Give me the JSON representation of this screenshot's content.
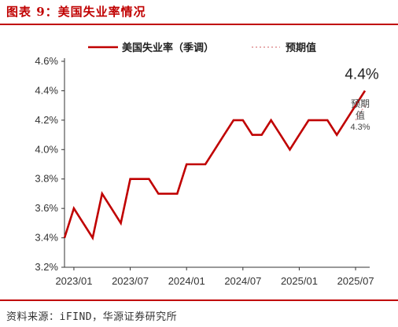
{
  "page": {
    "title": "图表 9：美国失业率情况",
    "source": "资料来源：iFIND，华源证券研究所"
  },
  "chart_data": {
    "type": "line",
    "xlabel": "",
    "ylabel": "",
    "ylim": [
      3.2,
      4.6
    ],
    "yticks": [
      "3.2%",
      "3.4%",
      "3.6%",
      "3.8%",
      "4.0%",
      "4.2%",
      "4.4%",
      "4.6%"
    ],
    "xticks": [
      "2023/01",
      "2023/07",
      "2024/01",
      "2024/07",
      "2025/01",
      "2025/07"
    ],
    "grid": false,
    "legend_position": "top-center",
    "series": [
      {
        "name": "美国失业率（季调）",
        "color": "#c00000",
        "style": "solid",
        "x": [
          "2022/12",
          "2023/01",
          "2023/02",
          "2023/03",
          "2023/04",
          "2023/05",
          "2023/06",
          "2023/07",
          "2023/08",
          "2023/09",
          "2023/10",
          "2023/11",
          "2023/12",
          "2024/01",
          "2024/02",
          "2024/03",
          "2024/04",
          "2024/05",
          "2024/06",
          "2024/07",
          "2024/08",
          "2024/09",
          "2024/10",
          "2024/11",
          "2024/12",
          "2025/01",
          "2025/02",
          "2025/03",
          "2025/04",
          "2025/05",
          "2025/06",
          "2025/07",
          "2025/08"
        ],
        "values": [
          3.4,
          3.6,
          3.5,
          3.4,
          3.7,
          3.6,
          3.5,
          3.8,
          3.8,
          3.8,
          3.7,
          3.7,
          3.7,
          3.9,
          3.9,
          3.9,
          4.0,
          4.1,
          4.2,
          4.2,
          4.1,
          4.1,
          4.2,
          4.1,
          4.0,
          4.1,
          4.2,
          4.2,
          4.2,
          4.1,
          4.2,
          4.3,
          4.4
        ]
      },
      {
        "name": "预期值",
        "color": "#e8aeb0",
        "style": "dotted",
        "x": [
          "2025/07",
          "2025/08"
        ],
        "values": [
          4.2,
          4.3
        ]
      }
    ],
    "annotations": [
      {
        "text": "4.4%",
        "x": "2025/08",
        "y": 4.4
      },
      {
        "text": "预期值",
        "x": "2025/08",
        "y": 4.3
      },
      {
        "text": "4.3%",
        "x": "2025/08",
        "y": 4.3
      }
    ]
  }
}
